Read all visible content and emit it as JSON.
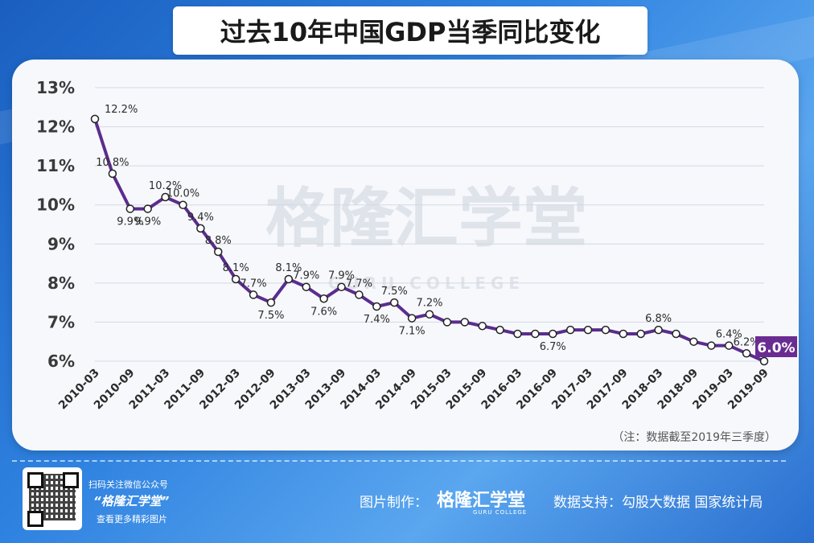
{
  "title": "过去10年中国GDP当季同比变化",
  "watermark": {
    "cn": "格隆汇学堂",
    "en": "GURU COLLEGE"
  },
  "note": "（注：数据截至2019年三季度）",
  "footer": {
    "qr_line1": "扫码关注微信公众号",
    "qr_brand": "“格隆汇学堂”",
    "qr_line2": "查看更多精彩图片",
    "made_by_label": "图片制作：",
    "brand": "格隆汇学堂",
    "brand_sub": "GURU COLLEGE",
    "data_support": "数据支持：勾股大数据  国家统计局"
  },
  "colors": {
    "line": "#5b2d8e",
    "highlight": "#6a2c91",
    "background": "#2a78d8"
  },
  "chart_data": {
    "type": "line",
    "title": "过去10年中国GDP当季同比变化",
    "y_ticks": [
      "6%",
      "7%",
      "8%",
      "9%",
      "10%",
      "11%",
      "12%",
      "13%"
    ],
    "ylim": [
      6,
      13
    ],
    "x_tick_labels": [
      "2010-03",
      "2010-09",
      "2011-03",
      "2011-09",
      "2012-03",
      "2012-09",
      "2013-03",
      "2013-09",
      "2014-03",
      "2014-09",
      "2015-03",
      "2015-09",
      "2016-03",
      "2016-09",
      "2017-03",
      "2017-09",
      "2018-03",
      "2018-09",
      "2019-03",
      "2019-09"
    ],
    "x": [
      "2010-03",
      "2010-06",
      "2010-09",
      "2010-12",
      "2011-03",
      "2011-06",
      "2011-09",
      "2011-12",
      "2012-03",
      "2012-06",
      "2012-09",
      "2012-12",
      "2013-03",
      "2013-06",
      "2013-09",
      "2013-12",
      "2014-03",
      "2014-06",
      "2014-09",
      "2014-12",
      "2015-03",
      "2015-06",
      "2015-09",
      "2015-12",
      "2016-03",
      "2016-06",
      "2016-09",
      "2016-12",
      "2017-03",
      "2017-06",
      "2017-09",
      "2017-12",
      "2018-03",
      "2018-06",
      "2018-09",
      "2018-12",
      "2019-03",
      "2019-06",
      "2019-09"
    ],
    "values": [
      12.2,
      10.8,
      9.9,
      9.9,
      10.2,
      10.0,
      9.4,
      8.8,
      8.1,
      7.7,
      7.5,
      8.1,
      7.9,
      7.6,
      7.9,
      7.7,
      7.4,
      7.5,
      7.1,
      7.2,
      7.0,
      7.0,
      6.9,
      6.8,
      6.7,
      6.7,
      6.7,
      6.8,
      6.8,
      6.8,
      6.7,
      6.7,
      6.8,
      6.7,
      6.5,
      6.4,
      6.4,
      6.2,
      6.0
    ],
    "point_labels": [
      "12.2%",
      "10.8%",
      "9.9%",
      "9.9%",
      "10.2%",
      "10.0%",
      "9.4%",
      "8.8%",
      "8.1%",
      "7.7%",
      "7.5%",
      "8.1%",
      "7.9%",
      "7.6%",
      "7.9%",
      "7.7%",
      "7.4%",
      "7.5%",
      "7.1%",
      "7.2%",
      "",
      "",
      "",
      "",
      "",
      "",
      "6.7%",
      "",
      "",
      "",
      "",
      "",
      "6.8%",
      "",
      "",
      "",
      "6.4%",
      "6.2%",
      "6.0%"
    ],
    "grid": true,
    "legend": "none"
  }
}
